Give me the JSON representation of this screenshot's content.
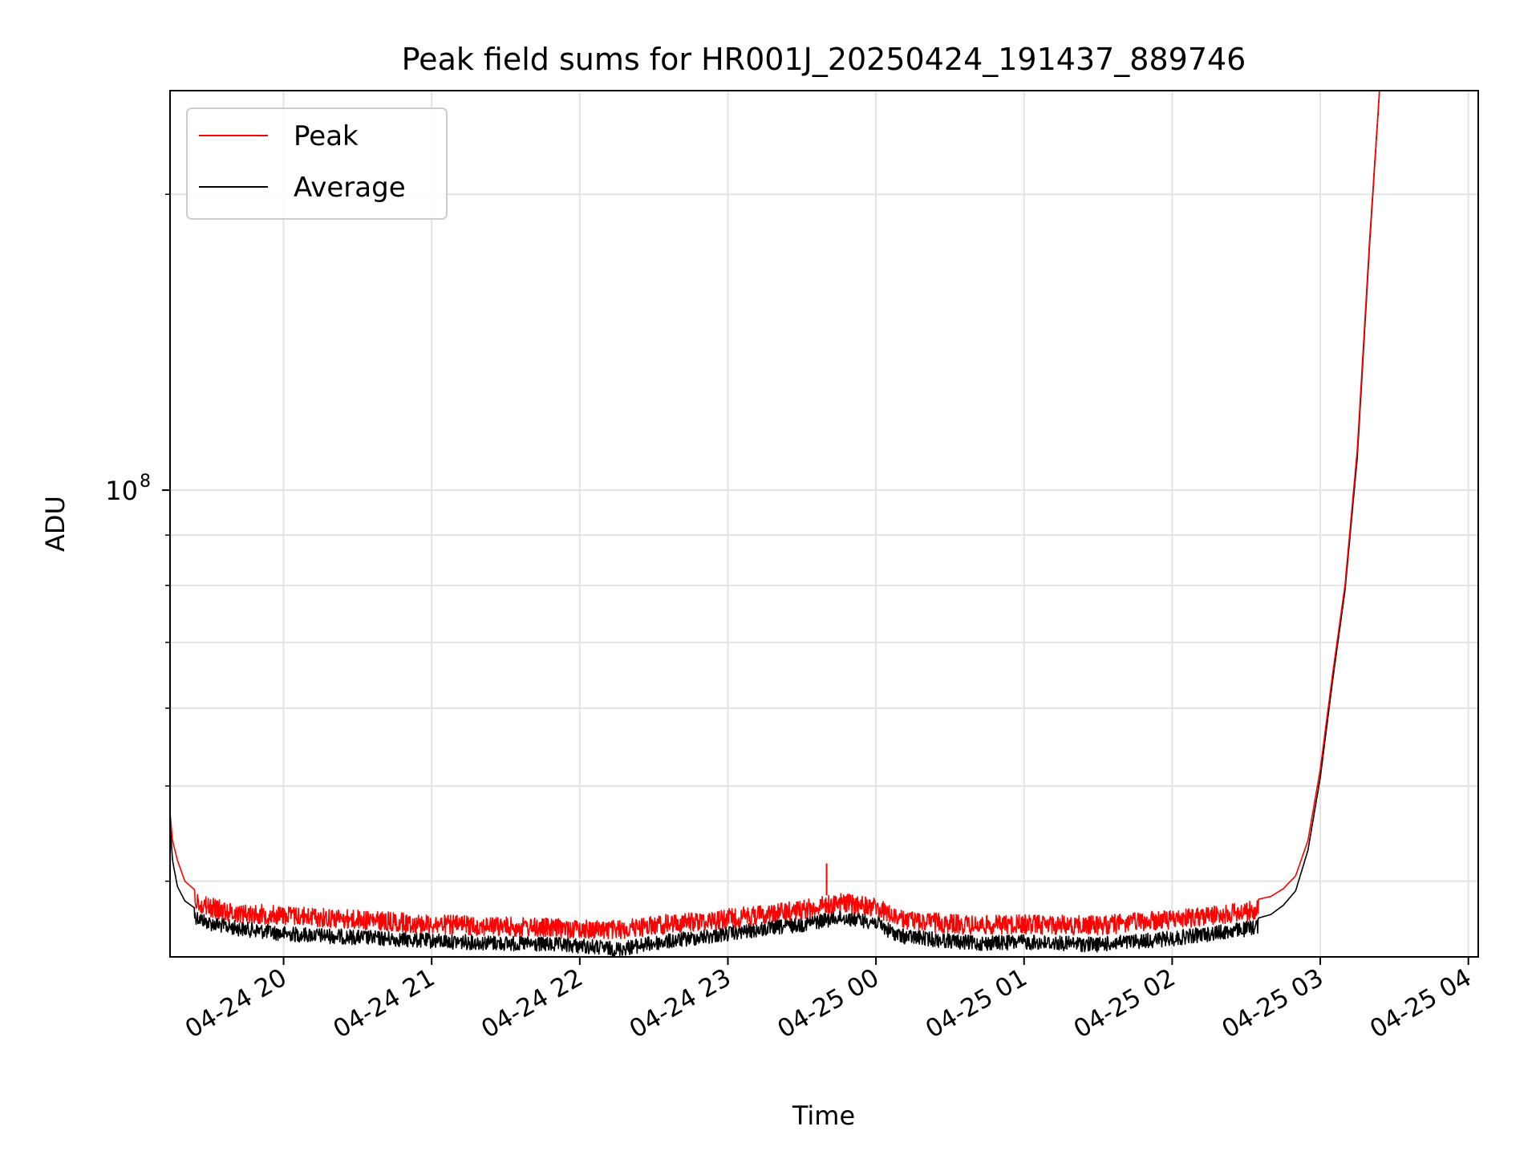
{
  "chart_data": {
    "type": "line",
    "title": "Peak field sums for HR001J_20250424_191437_889746",
    "xlabel": "Time",
    "ylabel": "ADU",
    "y_scale": "log",
    "ylim": [
      33500000,
      255000000
    ],
    "xlim": [
      "2025-04-24 19:14",
      "2025-04-25 04:04"
    ],
    "x_ticks": [
      {
        "t": "2025-04-24 20:00",
        "label": "04-24 20"
      },
      {
        "t": "2025-04-24 21:00",
        "label": "04-24 21"
      },
      {
        "t": "2025-04-24 22:00",
        "label": "04-24 22"
      },
      {
        "t": "2025-04-24 23:00",
        "label": "04-24 23"
      },
      {
        "t": "2025-04-25 00:00",
        "label": "04-25 00"
      },
      {
        "t": "2025-04-25 01:00",
        "label": "04-25 01"
      },
      {
        "t": "2025-04-25 02:00",
        "label": "04-25 02"
      },
      {
        "t": "2025-04-25 03:00",
        "label": "04-25 03"
      },
      {
        "t": "2025-04-25 04:00",
        "label": "04-25 04"
      }
    ],
    "y_major_ticks": [
      {
        "value": 100000000,
        "base": "10",
        "exp": "8"
      }
    ],
    "y_minor_ticks": [
      40000000,
      50000000,
      60000000,
      70000000,
      80000000,
      90000000,
      200000000
    ],
    "grid": true,
    "legend": {
      "position": "top-left",
      "entries": [
        {
          "name": "Peak",
          "color": "#ff0000"
        },
        {
          "name": "Average",
          "color": "#000000"
        }
      ]
    },
    "series": [
      {
        "name": "Peak",
        "color": "#ff0000",
        "x": [
          "2025-04-24 19:14",
          "2025-04-24 19:15",
          "2025-04-24 19:17",
          "2025-04-24 19:20",
          "2025-04-24 19:25",
          "2025-04-24 19:30",
          "2025-04-24 19:40",
          "2025-04-24 20:00",
          "2025-04-24 20:30",
          "2025-04-24 21:00",
          "2025-04-24 21:30",
          "2025-04-24 22:00",
          "2025-04-24 22:15",
          "2025-04-24 22:30",
          "2025-04-24 23:00",
          "2025-04-24 23:30",
          "2025-04-24 23:40",
          "2025-04-24 23:45",
          "2025-04-24 23:50",
          "2025-04-25 00:00",
          "2025-04-25 00:05",
          "2025-04-25 00:10",
          "2025-04-25 00:20",
          "2025-04-25 00:40",
          "2025-04-25 01:00",
          "2025-04-25 01:30",
          "2025-04-25 02:00",
          "2025-04-25 02:30",
          "2025-04-25 02:40",
          "2025-04-25 02:45",
          "2025-04-25 02:50",
          "2025-04-25 02:55",
          "2025-04-25 03:00",
          "2025-04-25 03:05",
          "2025-04-25 03:10",
          "2025-04-25 03:15",
          "2025-04-25 03:20",
          "2025-04-25 03:24"
        ],
        "values": [
          47000000,
          44000000,
          42000000,
          40000000,
          39000000,
          38500000,
          38000000,
          37800000,
          37400000,
          37000000,
          36800000,
          36600000,
          36500000,
          36900000,
          37500000,
          38300000,
          38700000,
          39000000,
          38800000,
          38500000,
          37900000,
          37400000,
          37200000,
          36900000,
          37000000,
          36900000,
          37400000,
          38100000,
          38600000,
          39300000,
          40500000,
          44000000,
          52000000,
          65000000,
          80000000,
          110000000,
          180000000,
          255000000
        ],
        "spikes": [
          {
            "x": "2025-04-24 23:40",
            "value": 41700000
          }
        ]
      },
      {
        "name": "Average",
        "color": "#000000",
        "x": [
          "2025-04-24 19:14",
          "2025-04-24 19:15",
          "2025-04-24 19:17",
          "2025-04-24 19:20",
          "2025-04-24 19:25",
          "2025-04-24 19:30",
          "2025-04-24 19:40",
          "2025-04-24 20:00",
          "2025-04-24 20:30",
          "2025-04-24 21:00",
          "2025-04-24 21:30",
          "2025-04-24 22:00",
          "2025-04-24 22:15",
          "2025-04-24 22:30",
          "2025-04-24 23:00",
          "2025-04-24 23:30",
          "2025-04-24 23:40",
          "2025-04-24 23:45",
          "2025-04-24 23:50",
          "2025-04-25 00:00",
          "2025-04-25 00:05",
          "2025-04-25 00:10",
          "2025-04-25 00:20",
          "2025-04-25 00:40",
          "2025-04-25 01:00",
          "2025-04-25 01:30",
          "2025-04-25 02:00",
          "2025-04-25 02:30",
          "2025-04-25 02:40",
          "2025-04-25 02:45",
          "2025-04-25 02:50",
          "2025-04-25 02:55",
          "2025-04-25 03:00",
          "2025-04-25 03:05",
          "2025-04-25 03:10",
          "2025-04-25 03:15",
          "2025-04-25 03:20",
          "2025-04-25 03:24"
        ],
        "values": [
          46000000,
          42000000,
          39500000,
          38200000,
          37400000,
          36900000,
          36500000,
          36000000,
          35700000,
          35400000,
          35200000,
          35000000,
          34700000,
          35200000,
          36000000,
          36800000,
          37200000,
          37400000,
          37300000,
          37000000,
          36300000,
          35800000,
          35600000,
          35200000,
          35300000,
          35100000,
          35600000,
          36400000,
          37000000,
          37800000,
          39100000,
          43000000,
          51000000,
          64000000,
          79000000,
          108000000,
          178000000,
          255000000
        ]
      }
    ]
  }
}
